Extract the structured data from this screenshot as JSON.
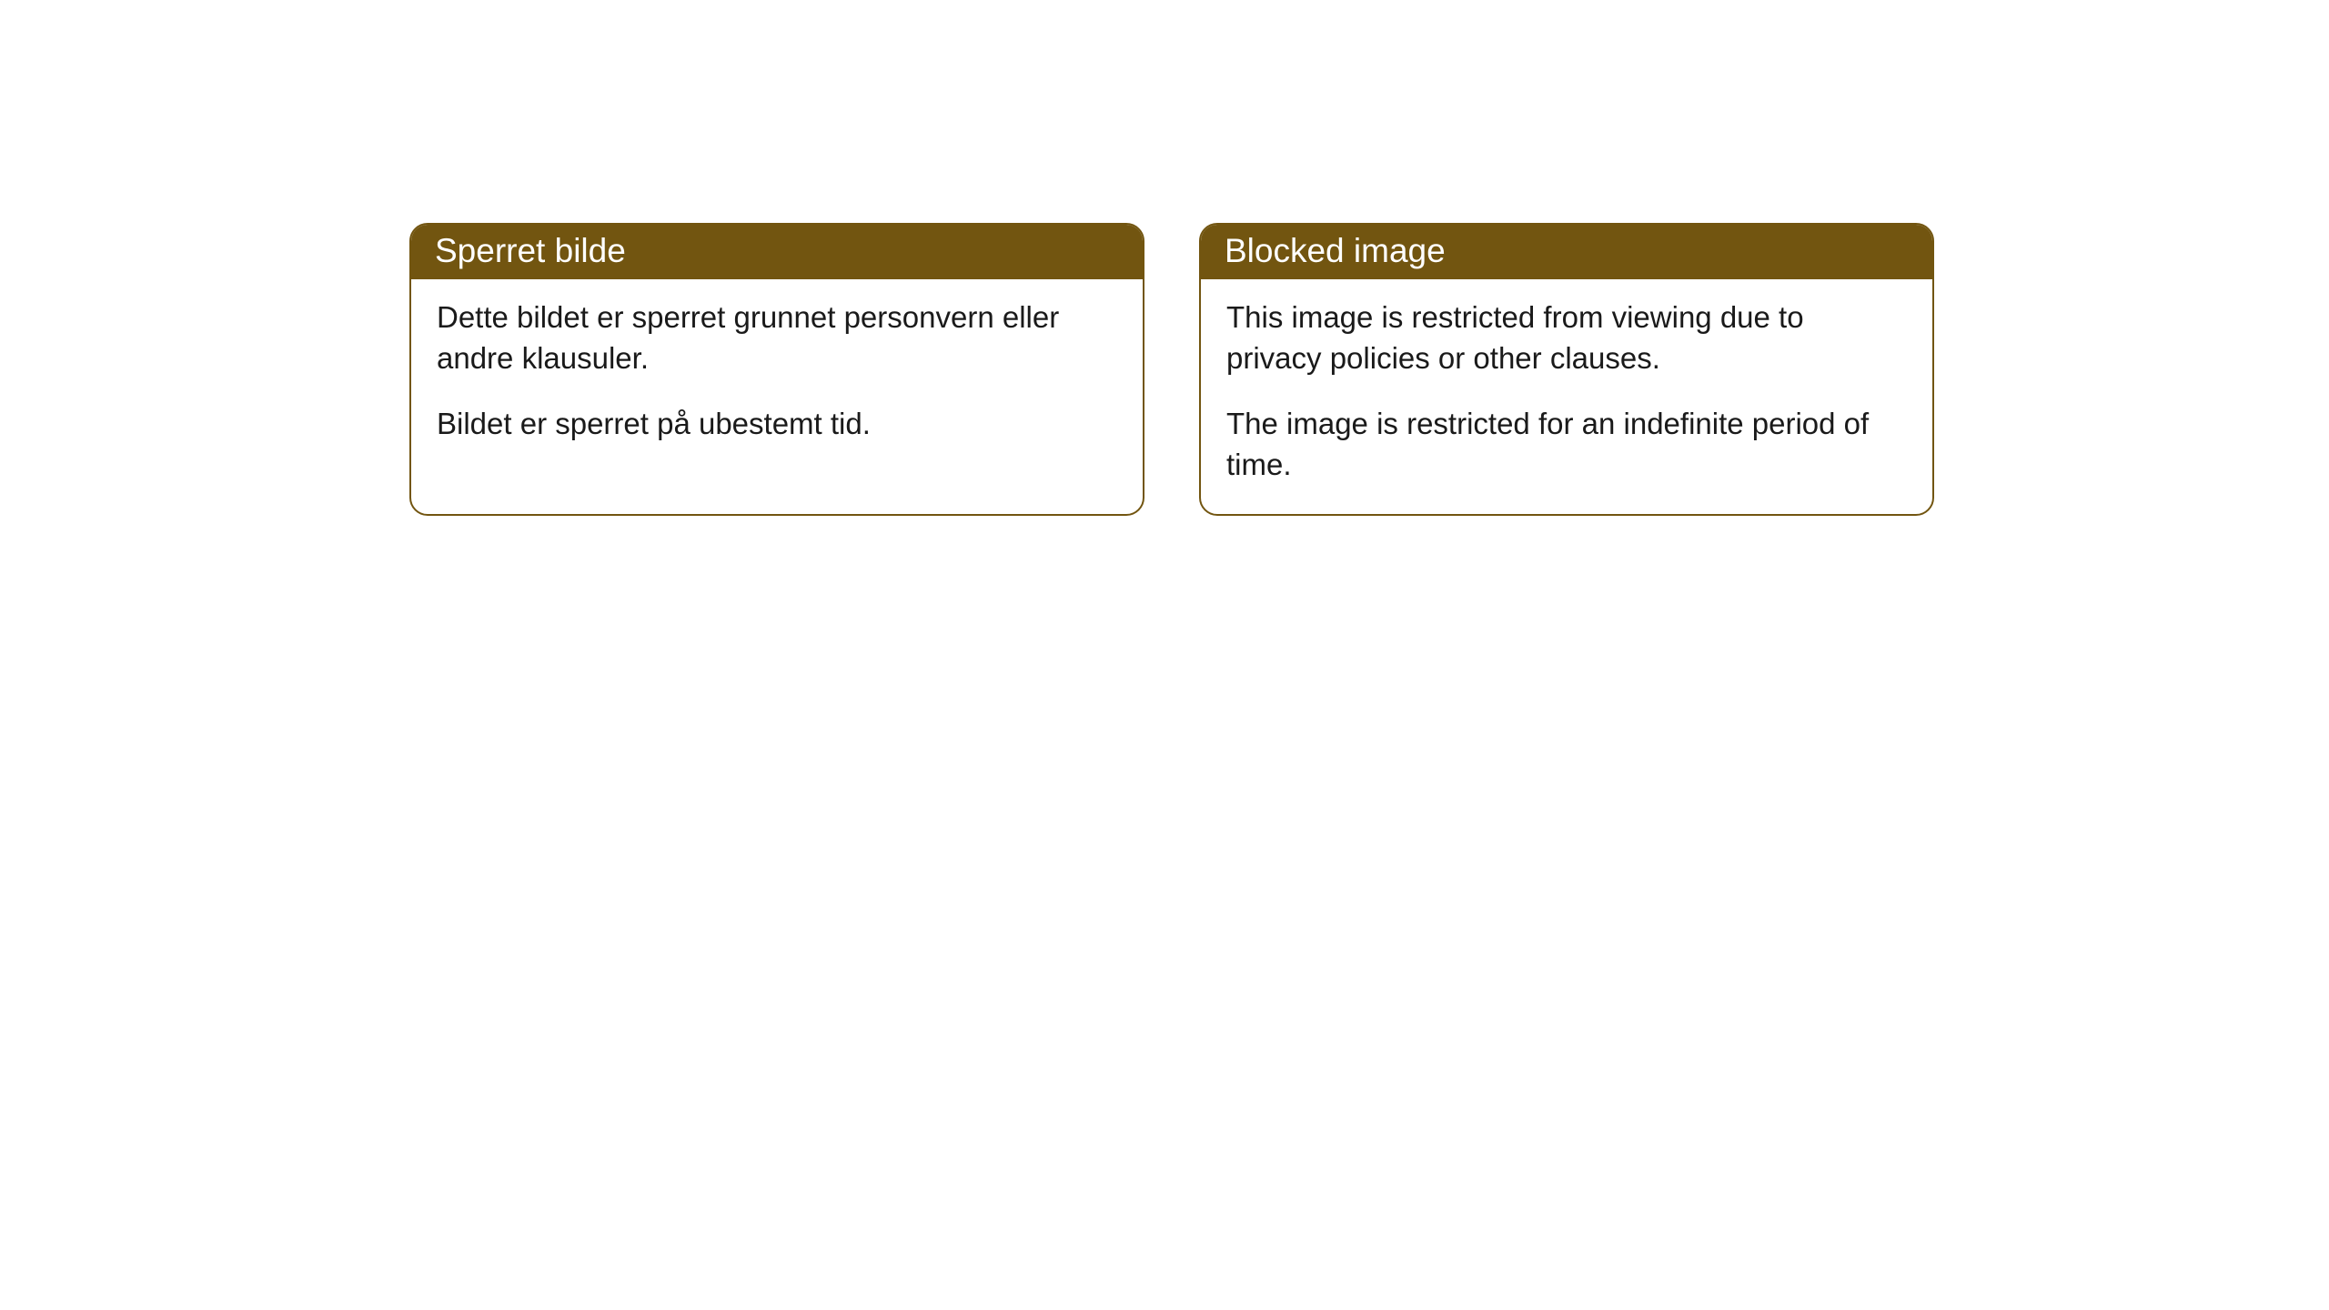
{
  "cards": [
    {
      "title": "Sperret bilde",
      "paragraph1": "Dette bildet er sperret grunnet personvern eller andre klausuler.",
      "paragraph2": "Bildet er sperret på ubestemt tid."
    },
    {
      "title": "Blocked image",
      "paragraph1": "This image is restricted from viewing due to privacy policies or other clauses.",
      "paragraph2": "The image is restricted for an indefinite period of time."
    }
  ],
  "styling": {
    "header_bg_color": "#725510",
    "header_text_color": "#ffffff",
    "border_color": "#725510",
    "body_bg_color": "#ffffff",
    "body_text_color": "#1a1a1a",
    "border_radius": 20,
    "header_fontsize": 37,
    "body_fontsize": 33
  }
}
